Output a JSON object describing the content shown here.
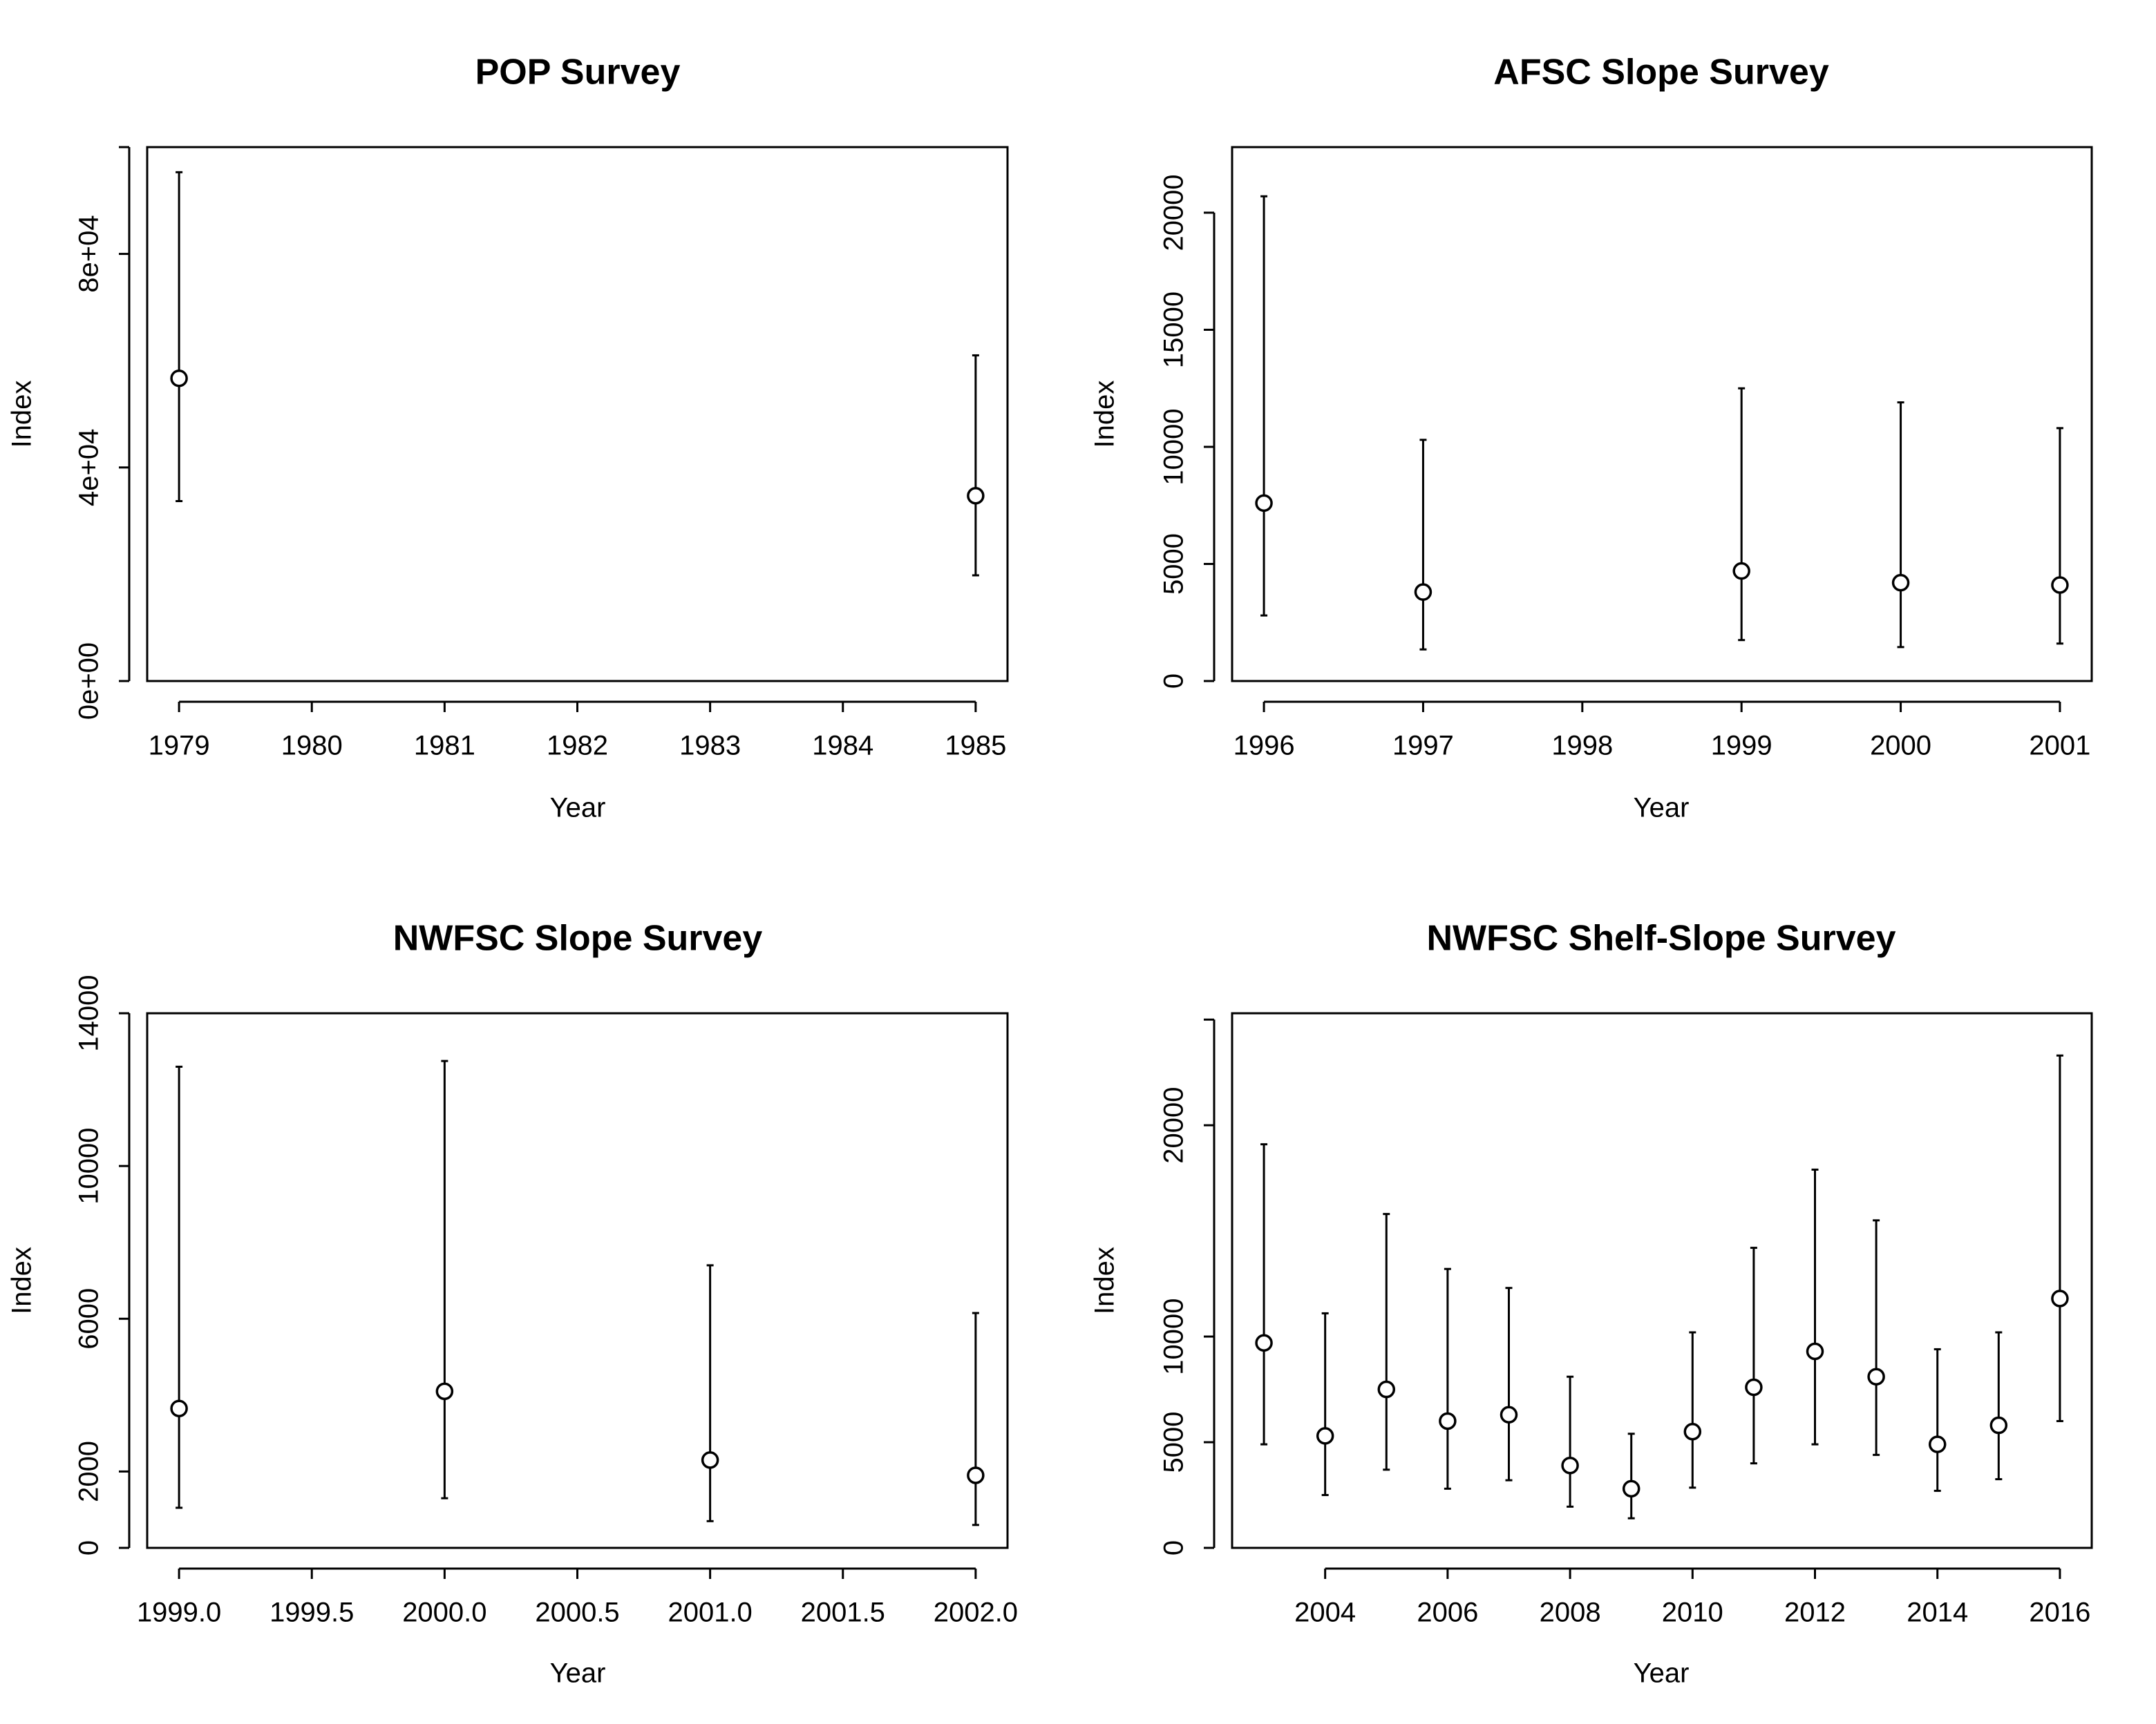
{
  "figure": {
    "panels": [
      "POP Survey",
      "AFSC Slope Survey",
      "NWFSC Slope Survey",
      "NWFSC Shelf-Slope Survey"
    ]
  },
  "chart_data": [
    {
      "type": "scatter",
      "title": "POP Survey",
      "xlabel": "Year",
      "ylabel": "Index",
      "xlim": [
        1978.76,
        1985.24
      ],
      "ylim": [
        0,
        100000
      ],
      "x_ticks": [
        1979,
        1980,
        1981,
        1982,
        1983,
        1984,
        1985
      ],
      "x_tick_labels": [
        "1979",
        "1980",
        "1981",
        "1982",
        "1983",
        "1984",
        "1985"
      ],
      "y_ticks": [
        0,
        40000,
        80000
      ],
      "y_tick_labels": [
        "0e+00",
        "4e+04",
        "8e+04"
      ],
      "y_axis_extent": [
        0,
        100000
      ],
      "series": [
        {
          "x": [
            1979,
            1985
          ],
          "y": [
            56700,
            34700
          ],
          "lower": [
            33700,
            19800
          ],
          "upper": [
            95300,
            61000
          ]
        }
      ]
    },
    {
      "type": "scatter",
      "title": "AFSC Slope Survey",
      "xlabel": "Year",
      "ylabel": "Index",
      "xlim": [
        1995.8,
        2001.2
      ],
      "ylim": [
        0,
        22800
      ],
      "x_ticks": [
        1996,
        1997,
        1998,
        1999,
        2000,
        2001
      ],
      "x_tick_labels": [
        "1996",
        "1997",
        "1998",
        "1999",
        "2000",
        "2001"
      ],
      "y_ticks": [
        0,
        5000,
        10000,
        15000,
        20000
      ],
      "y_tick_labels": [
        "0",
        "5000",
        "10000",
        "15000",
        "20000"
      ],
      "y_axis_extent": [
        0,
        20000
      ],
      "series": [
        {
          "x": [
            1996,
            1997,
            1999,
            2000,
            2001
          ],
          "y": [
            7600,
            3800,
            4700,
            4200,
            4100
          ],
          "lower": [
            2800,
            1350,
            1750,
            1450,
            1600
          ],
          "upper": [
            20700,
            10300,
            12500,
            11900,
            10800
          ]
        }
      ]
    },
    {
      "type": "scatter",
      "title": "NWFSC Slope Survey",
      "xlabel": "Year",
      "ylabel": "Index",
      "xlim": [
        1998.88,
        2002.12
      ],
      "ylim": [
        0,
        14000
      ],
      "x_ticks": [
        1999.0,
        1999.5,
        2000.0,
        2000.5,
        2001.0,
        2001.5,
        2002.0
      ],
      "x_tick_labels": [
        "1999.0",
        "1999.5",
        "2000.0",
        "2000.5",
        "2001.0",
        "2001.5",
        "2002.0"
      ],
      "y_ticks": [
        0,
        2000,
        6000,
        10000,
        14000
      ],
      "y_tick_labels": [
        "0",
        "2000",
        "6000",
        "10000",
        "14000"
      ],
      "y_axis_extent": [
        0,
        14000
      ],
      "series": [
        {
          "x": [
            1999,
            2000,
            2001,
            2002
          ],
          "y": [
            3650,
            4100,
            2300,
            1900
          ],
          "lower": [
            1050,
            1300,
            700,
            600
          ],
          "upper": [
            12600,
            12750,
            7400,
            6150
          ]
        }
      ]
    },
    {
      "type": "scatter",
      "title": "NWFSC Shelf-Slope Survey",
      "xlabel": "Year",
      "ylabel": "Index",
      "xlim": [
        2002.48,
        2016.52
      ],
      "ylim": [
        0,
        25300
      ],
      "x_ticks": [
        2004,
        2006,
        2008,
        2010,
        2012,
        2014,
        2016
      ],
      "x_tick_labels": [
        "2004",
        "2006",
        "2008",
        "2010",
        "2012",
        "2014",
        "2016"
      ],
      "y_ticks": [
        0,
        5000,
        10000,
        20000
      ],
      "y_tick_labels": [
        "0",
        "5000",
        "10000",
        "20000"
      ],
      "y_axis_extent": [
        0,
        25000
      ],
      "series": [
        {
          "x": [
            2003,
            2004,
            2005,
            2006,
            2007,
            2008,
            2009,
            2010,
            2011,
            2012,
            2013,
            2014,
            2015,
            2016
          ],
          "y": [
            9700,
            5300,
            7500,
            6000,
            6300,
            3900,
            2800,
            5500,
            7600,
            9300,
            8100,
            4900,
            5800,
            11800
          ],
          "lower": [
            4900,
            2500,
            3700,
            2800,
            3200,
            1950,
            1400,
            2850,
            4000,
            4900,
            4400,
            2700,
            3250,
            6000
          ],
          "upper": [
            19100,
            11100,
            15800,
            13200,
            12300,
            8100,
            5400,
            10200,
            14200,
            17900,
            15500,
            9400,
            10200,
            23300
          ]
        }
      ]
    }
  ]
}
